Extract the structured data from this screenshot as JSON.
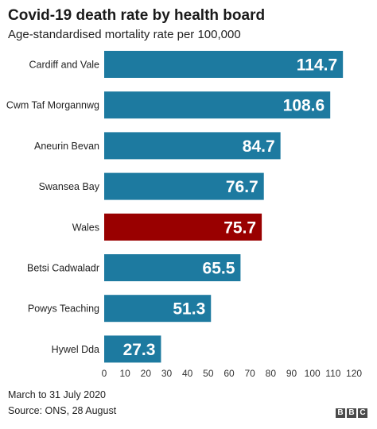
{
  "chart_data": {
    "type": "bar",
    "orientation": "horizontal",
    "title": "Covid-19 death rate by health board",
    "subtitle": "Age-standardised mortality rate per 100,000",
    "categories": [
      "Cardiff and Vale",
      "Cwm Taf Morgannwg",
      "Aneurin Bevan",
      "Swansea Bay",
      "Wales",
      "Betsi Cadwaladr",
      "Powys Teaching",
      "Hywel Dda"
    ],
    "values": [
      114.7,
      108.6,
      84.7,
      76.7,
      75.7,
      65.5,
      51.3,
      27.3
    ],
    "value_labels": [
      "114.7",
      "108.6",
      "84.7",
      "76.7",
      "75.7",
      "65.5",
      "51.3",
      "27.3"
    ],
    "highlight": "Wales",
    "colors": {
      "bar": "#1d7aa0",
      "highlight": "#990000",
      "label": "#ffffff"
    },
    "xlim": [
      0,
      120
    ],
    "xticks": [
      0,
      10,
      20,
      30,
      40,
      50,
      60,
      70,
      80,
      90,
      100,
      110,
      120
    ],
    "grid": false,
    "xlabel": "",
    "ylabel": ""
  },
  "notes": {
    "period": "March to 31 July 2020",
    "source": "Source: ONS, 28 August"
  },
  "logo": {
    "letters": [
      "B",
      "B",
      "C"
    ]
  }
}
